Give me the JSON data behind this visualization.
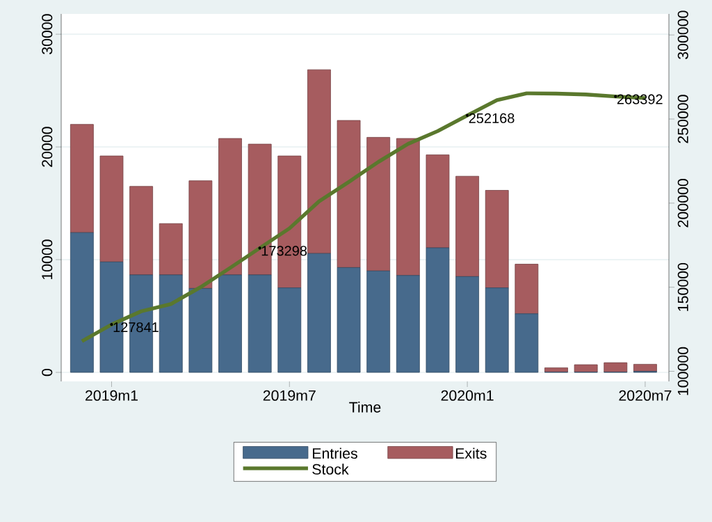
{
  "chart_data": {
    "type": "bar",
    "stacked": true,
    "xlabel": "Time",
    "categories": [
      null,
      "2019m1",
      null,
      null,
      null,
      null,
      null,
      "2019m7",
      null,
      null,
      null,
      null,
      null,
      "2020m1",
      null,
      null,
      null,
      null,
      null,
      "2020m7"
    ],
    "series": [
      {
        "name": "Entries",
        "color": "#476a8c",
        "values": [
          12400,
          9800,
          8650,
          8650,
          7450,
          8650,
          8650,
          7500,
          10550,
          9300,
          9000,
          8600,
          11050,
          8500,
          7500,
          5200,
          30,
          30,
          30,
          100
        ]
      },
      {
        "name": "Exits",
        "color": "#a65c5f",
        "values": [
          9600,
          9400,
          7850,
          4550,
          9550,
          12100,
          11600,
          11700,
          16300,
          13050,
          11850,
          12150,
          8250,
          8900,
          8650,
          4400,
          380,
          650,
          830,
          620
        ]
      },
      {
        "name": "Stock",
        "type": "line",
        "axis": "y2",
        "color": "#5a782d",
        "values": [
          117900,
          127841,
          135700,
          140000,
          150000,
          161500,
          173298,
          185000,
          201100,
          212600,
          224500,
          235200,
          242800,
          252168,
          261200,
          265300,
          265100,
          264600,
          263392,
          262500
        ],
        "value_labels": [
          null,
          "127841",
          null,
          null,
          null,
          null,
          "173298",
          null,
          null,
          null,
          null,
          null,
          null,
          "252168",
          null,
          null,
          null,
          null,
          "263392",
          null
        ]
      }
    ],
    "ylim": [
      -800,
      31800
    ],
    "yticks": [
      0,
      10000,
      20000,
      30000
    ],
    "y2lim": [
      94000,
      312500
    ],
    "y2ticks": [
      100000,
      150000,
      200000,
      250000,
      300000
    ],
    "grid": "y",
    "legend": "bottom"
  }
}
